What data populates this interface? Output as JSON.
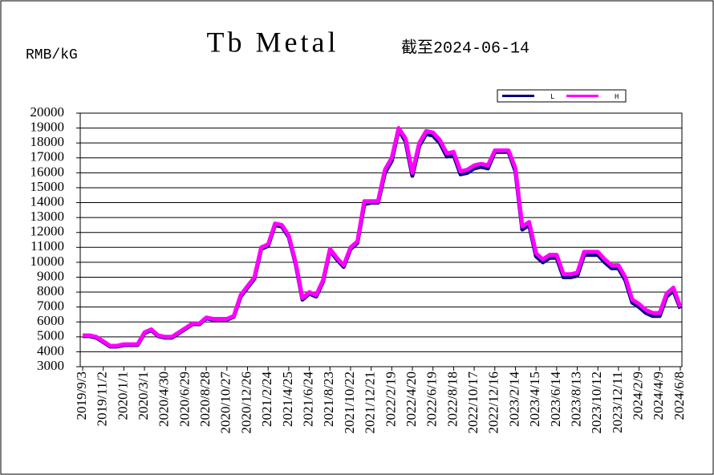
{
  "chart_data": {
    "type": "line",
    "title": "Tb Metal",
    "subtitle": "截至2024-06-14",
    "y_label": "RMB/kG",
    "categories": [
      "2019/9/3",
      null,
      null,
      "2019/11/2",
      null,
      null,
      "2020/1/1",
      null,
      null,
      "2020/3/1",
      null,
      null,
      "2020/4/30",
      null,
      null,
      "2020/6/29",
      null,
      null,
      "2020/8/28",
      null,
      null,
      "2020/10/27",
      null,
      null,
      "2020/12/26",
      null,
      null,
      "2021/2/24",
      null,
      null,
      "2021/4/25",
      null,
      null,
      "2021/6/24",
      null,
      null,
      "2021/8/23",
      null,
      null,
      "2021/10/22",
      null,
      null,
      "2021/12/21",
      null,
      null,
      "2022/2/19",
      null,
      null,
      "2022/4/20",
      null,
      null,
      "2022/6/19",
      null,
      null,
      "2022/8/18",
      null,
      null,
      "2022/10/17",
      null,
      null,
      "2022/12/16",
      null,
      null,
      "2023/2/14",
      null,
      null,
      "2023/4/15",
      null,
      null,
      "2023/6/14",
      null,
      null,
      "2023/8/13",
      null,
      null,
      "2023/10/12",
      null,
      null,
      "2023/12/11",
      null,
      null,
      "2024/2/9",
      null,
      null,
      "2024/4/9",
      null,
      null,
      "2024/6/8"
    ],
    "series": [
      {
        "name": "L",
        "color": "#000080",
        "values": [
          5050,
          5050,
          4950,
          4650,
          4350,
          4350,
          4450,
          4450,
          4450,
          5250,
          5450,
          5050,
          4950,
          4950,
          5250,
          5550,
          5850,
          5850,
          6250,
          6150,
          6150,
          6150,
          6350,
          7700,
          8300,
          8900,
          10900,
          11100,
          12500,
          12400,
          11700,
          9900,
          7500,
          7900,
          7700,
          8700,
          10800,
          10200,
          9700,
          10900,
          11300,
          13900,
          14000,
          14000,
          16000,
          16800,
          18900,
          18100,
          15800,
          17800,
          18600,
          18500,
          18000,
          17100,
          17200,
          15900,
          16000,
          16300,
          16400,
          16300,
          17400,
          17400,
          17400,
          16100,
          12200,
          12500,
          10400,
          10000,
          10300,
          10300,
          9000,
          9000,
          9100,
          10500,
          10500,
          10500,
          10000,
          9600,
          9600,
          8800,
          7300,
          7000,
          6600,
          6400,
          6400,
          7700,
          8100,
          6900
        ]
      },
      {
        "name": "H",
        "color": "#ff00ff",
        "values": [
          5100,
          5100,
          5000,
          4700,
          4400,
          4400,
          4500,
          4500,
          4500,
          5300,
          5500,
          5100,
          5000,
          5000,
          5300,
          5600,
          5900,
          5900,
          6300,
          6200,
          6200,
          6200,
          6400,
          7800,
          8400,
          9000,
          11000,
          11200,
          12600,
          12500,
          11800,
          10000,
          7600,
          8000,
          7800,
          8800,
          10900,
          10300,
          9800,
          11000,
          11400,
          14100,
          14100,
          14100,
          16200,
          17000,
          19000,
          18300,
          16000,
          18000,
          18800,
          18700,
          18200,
          17300,
          17400,
          16100,
          16200,
          16500,
          16600,
          16500,
          17500,
          17500,
          17500,
          16300,
          12400,
          12700,
          10600,
          10200,
          10500,
          10500,
          9200,
          9200,
          9300,
          10700,
          10700,
          10700,
          10200,
          9800,
          9800,
          9000,
          7500,
          7200,
          6800,
          6600,
          6600,
          7900,
          8300,
          7000
        ]
      }
    ],
    "ylim": [
      3000,
      20000
    ],
    "yticks": [
      3000,
      4000,
      5000,
      6000,
      7000,
      8000,
      9000,
      10000,
      11000,
      12000,
      13000,
      14000,
      15000,
      16000,
      17000,
      18000,
      19000,
      20000
    ],
    "grid": true,
    "legend": "top-right"
  }
}
